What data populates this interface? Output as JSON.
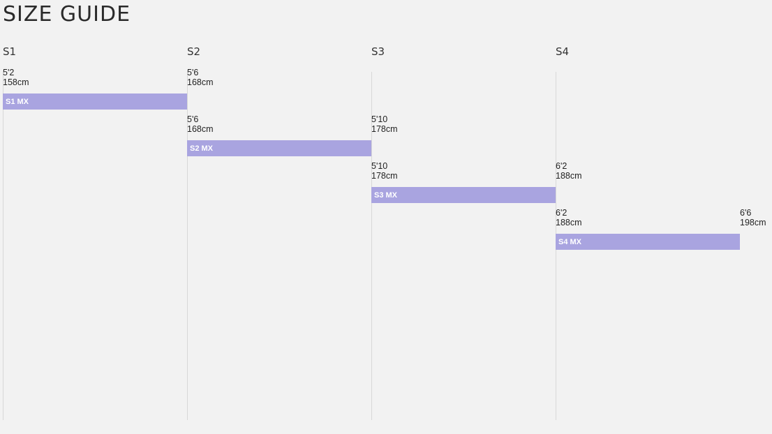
{
  "title": "SIZE GUIDE",
  "colors": {
    "background": "#f2f2f2",
    "bar": "#a9a4e0",
    "bar_text": "#ffffff",
    "gridline": "#d8d8d8"
  },
  "chart_data": {
    "type": "bar",
    "orientation": "horizontal range (gantt-style)",
    "title": "SIZE GUIDE",
    "columns": [
      "S1",
      "S2",
      "S3",
      "S4"
    ],
    "grid": true,
    "rows": [
      {
        "label": "S1 MX",
        "start": {
          "imperial": "5'2",
          "metric": "158cm",
          "cm": 158
        },
        "end": {
          "imperial": "5'6",
          "metric": "168cm",
          "cm": 168
        }
      },
      {
        "label": "S2 MX",
        "start": {
          "imperial": "5'6",
          "metric": "168cm",
          "cm": 168
        },
        "end": {
          "imperial": "5'10",
          "metric": "178cm",
          "cm": 178
        }
      },
      {
        "label": "S3 MX",
        "start": {
          "imperial": "5'10",
          "metric": "178cm",
          "cm": 178
        },
        "end": {
          "imperial": "6'2",
          "metric": "188cm",
          "cm": 188
        }
      },
      {
        "label": "S4 MX",
        "start": {
          "imperial": "6'2",
          "metric": "188cm",
          "cm": 188
        },
        "end": {
          "imperial": "6'6",
          "metric": "198cm",
          "cm": 198
        }
      }
    ]
  }
}
